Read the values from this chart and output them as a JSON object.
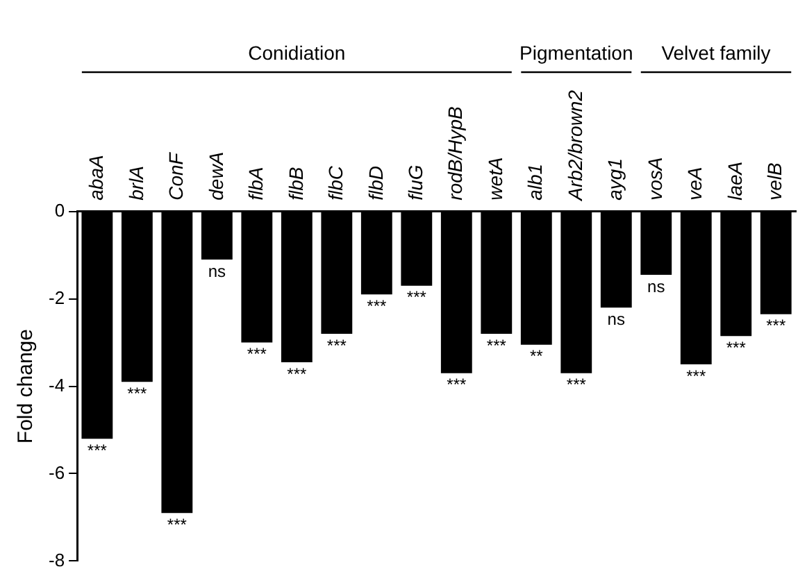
{
  "chart_data": {
    "type": "bar",
    "ylabel": "Fold change",
    "categories": [
      "abaA",
      "brlA",
      "ConF",
      "dewA",
      "flbA",
      "flbB",
      "flbC",
      "flbD",
      "fluG",
      "rodB/HypB",
      "wetA",
      "alb1",
      "Arb2/brown2",
      "ayg1",
      "vosA",
      "veA",
      "laeA",
      "velB"
    ],
    "series": [
      {
        "color": "#000000",
        "values": [
          -5.2,
          -3.9,
          -6.9,
          -1.1,
          -3.0,
          -3.45,
          -2.8,
          -1.9,
          -1.7,
          -3.7,
          -2.8,
          -3.05,
          -3.7,
          -2.2,
          -1.45,
          -3.5,
          -2.85,
          -2.35
        ],
        "value_labels": [
          "***",
          "***",
          "***",
          "ns",
          "***",
          "***",
          "***",
          "***",
          "***",
          "***",
          "***",
          "**",
          "***",
          "ns",
          "ns",
          "***",
          "***",
          "***"
        ]
      }
    ],
    "ylim": [
      -8,
      0
    ],
    "yticks": [
      -8,
      -6,
      -4,
      -2,
      0
    ],
    "grid": false,
    "legend": false,
    "annotations": [
      "Conidiation",
      "Pigmentation",
      "Velvet family"
    ]
  }
}
